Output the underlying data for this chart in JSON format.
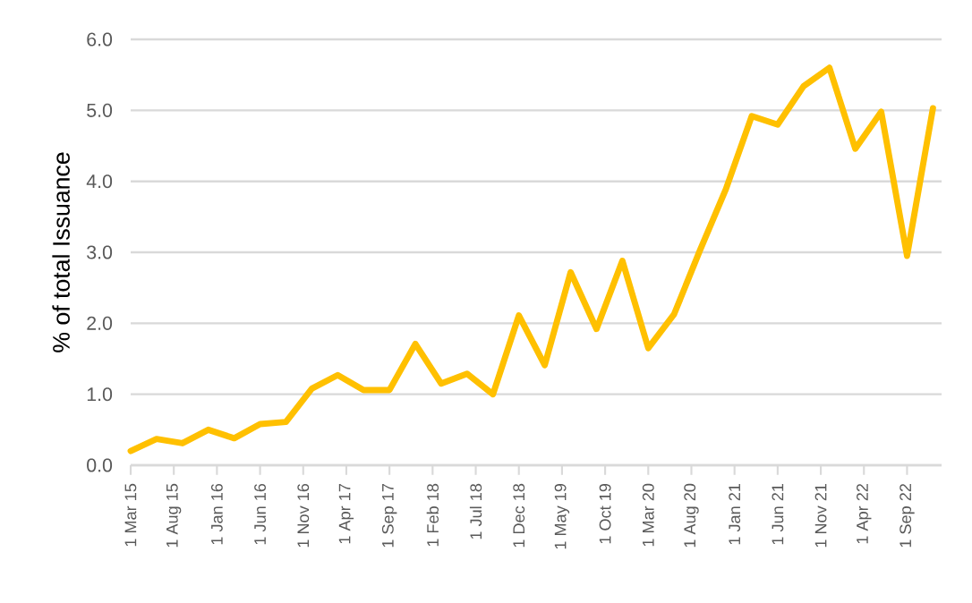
{
  "chart_data": {
    "type": "line",
    "ylabel": "% of total Issuance",
    "x": [
      "2015-03",
      "2015-06",
      "2015-09",
      "2015-12",
      "2016-03",
      "2016-06",
      "2016-09",
      "2016-12",
      "2017-03",
      "2017-06",
      "2017-09",
      "2017-12",
      "2018-03",
      "2018-06",
      "2018-09",
      "2018-12",
      "2019-03",
      "2019-06",
      "2019-09",
      "2019-12",
      "2020-03",
      "2020-06",
      "2020-09",
      "2020-12",
      "2021-03",
      "2021-06",
      "2021-09",
      "2021-12",
      "2022-03",
      "2022-06",
      "2022-09",
      "2022-12"
    ],
    "values": [
      0.2,
      0.37,
      0.31,
      0.5,
      0.38,
      0.58,
      0.61,
      1.08,
      1.27,
      1.06,
      1.06,
      1.71,
      1.15,
      1.29,
      1.0,
      2.11,
      1.41,
      2.72,
      1.92,
      2.88,
      1.65,
      2.13,
      3.03,
      3.89,
      4.92,
      4.8,
      5.34,
      5.6,
      4.46,
      4.98,
      2.95,
      5.03
    ],
    "color": "#ffc000",
    "xlim": [
      "2015-03-01",
      "2023-01-01"
    ],
    "xticks": [
      {
        "value": "2015-03-01",
        "label": "1 Mar 15"
      },
      {
        "value": "2015-08-01",
        "label": "1 Aug 15"
      },
      {
        "value": "2016-01-01",
        "label": "1 Jan 16"
      },
      {
        "value": "2016-06-01",
        "label": "1 Jun 16"
      },
      {
        "value": "2016-11-01",
        "label": "1 Nov 16"
      },
      {
        "value": "2017-04-01",
        "label": "1 Apr 17"
      },
      {
        "value": "2017-09-01",
        "label": "1 Sep 17"
      },
      {
        "value": "2018-02-01",
        "label": "1 Feb 18"
      },
      {
        "value": "2018-07-01",
        "label": "1 Jul 18"
      },
      {
        "value": "2018-12-01",
        "label": "1 Dec 18"
      },
      {
        "value": "2019-05-01",
        "label": "1 May 19"
      },
      {
        "value": "2019-10-01",
        "label": "1 Oct 19"
      },
      {
        "value": "2020-03-01",
        "label": "1 Mar 20"
      },
      {
        "value": "2020-08-01",
        "label": "1 Aug 20"
      },
      {
        "value": "2021-01-01",
        "label": "1 Jan 21"
      },
      {
        "value": "2021-06-01",
        "label": "1 Jun 21"
      },
      {
        "value": "2021-11-01",
        "label": "1 Nov 21"
      },
      {
        "value": "2022-04-01",
        "label": "1 Apr 22"
      },
      {
        "value": "2022-09-01",
        "label": "1 Sep 22"
      }
    ],
    "ylim": [
      0,
      6
    ],
    "yticks": [
      {
        "value": 0,
        "label": "0.0"
      },
      {
        "value": 1,
        "label": "1.0"
      },
      {
        "value": 2,
        "label": "2.0"
      },
      {
        "value": 3,
        "label": "3.0"
      },
      {
        "value": 4,
        "label": "4.0"
      },
      {
        "value": 5,
        "label": "5.0"
      },
      {
        "value": 6,
        "label": "6.0"
      }
    ],
    "grid": "y"
  }
}
